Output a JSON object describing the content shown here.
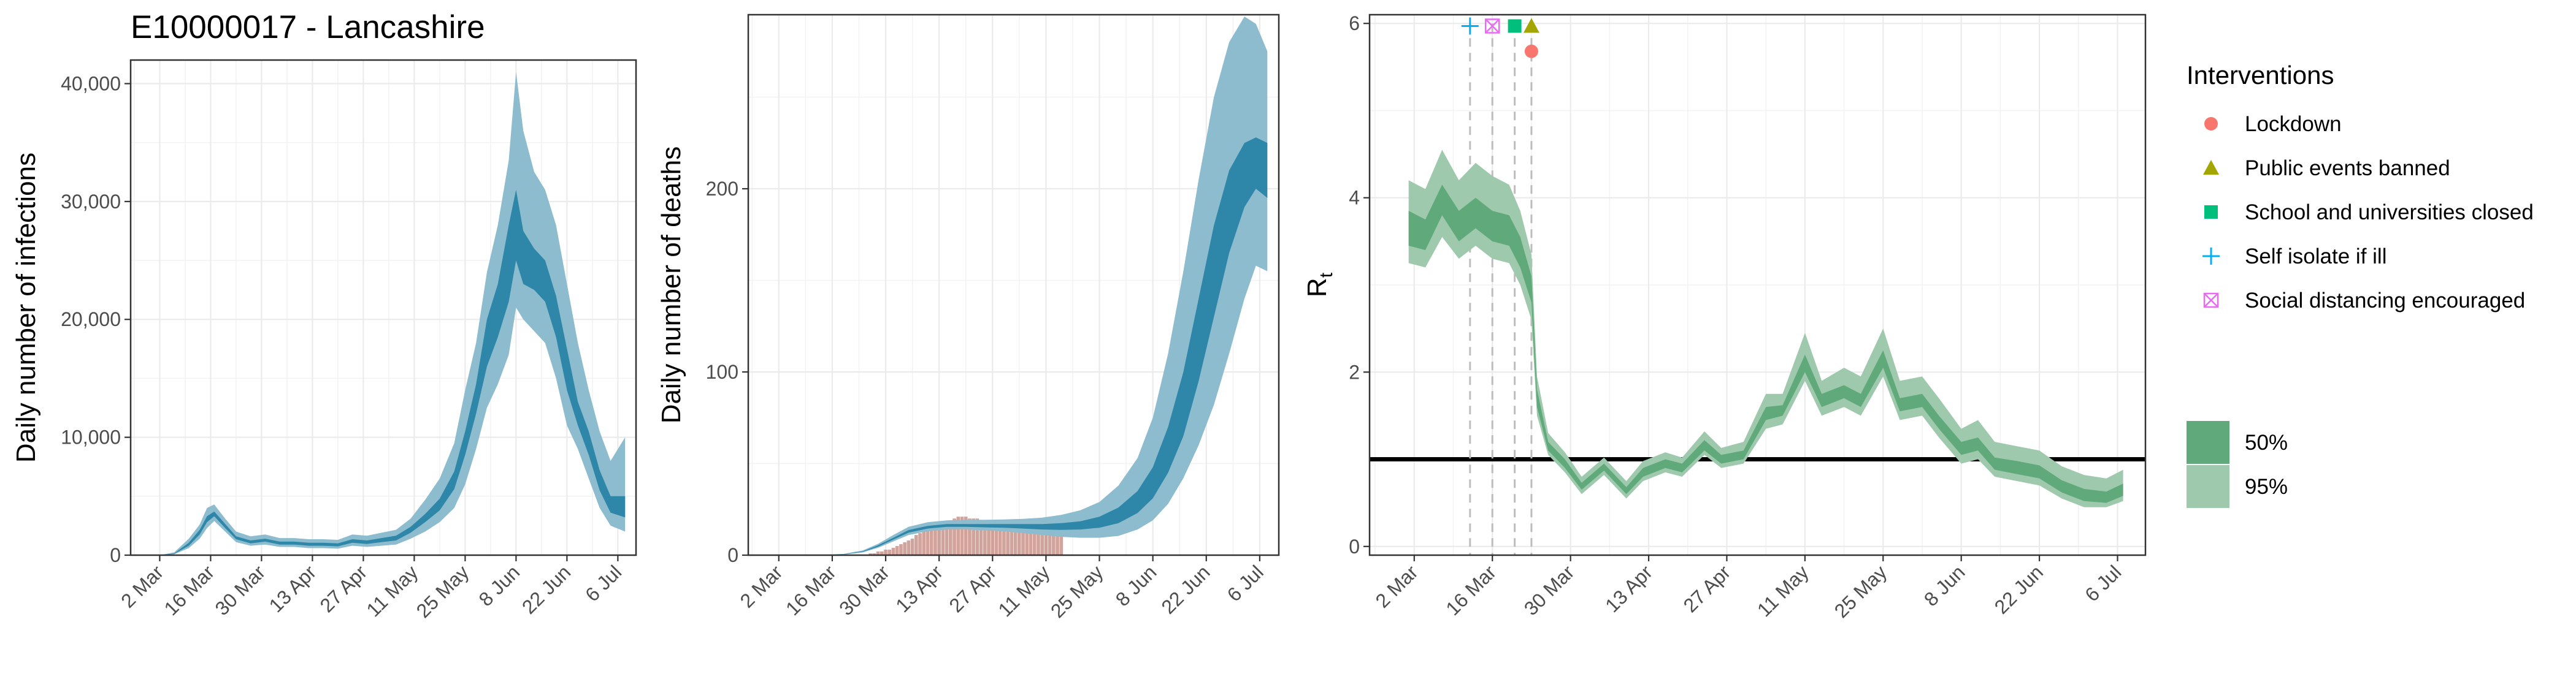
{
  "chart_data": [
    {
      "type": "area",
      "title": "E10000017 - Lancashire",
      "xlabel": "",
      "ylabel": "Daily number of infections",
      "x_tick_labels": [
        "2 Mar",
        "16 Mar",
        "30 Mar",
        "13 Apr",
        "27 Apr",
        "11 May",
        "25 May",
        "8 Jun",
        "22 Jun",
        "6 Jul"
      ],
      "y_tick_labels": [
        "0",
        "10,000",
        "20,000",
        "30,000",
        "40,000"
      ],
      "ylim": [
        0,
        42000
      ],
      "grid": true,
      "colors": {
        "band95": "#8dbccf",
        "band50": "#2e86a8"
      },
      "series": [
        {
          "x": [
            "2020-02-27",
            "2020-03-02",
            "2020-03-06",
            "2020-03-10",
            "2020-03-13",
            "2020-03-15",
            "2020-03-17",
            "2020-03-20",
            "2020-03-23",
            "2020-03-27",
            "2020-03-31",
            "2020-04-04",
            "2020-04-08",
            "2020-04-12",
            "2020-04-16",
            "2020-04-20",
            "2020-04-24",
            "2020-04-28",
            "2020-05-02",
            "2020-05-06",
            "2020-05-10",
            "2020-05-14",
            "2020-05-18",
            "2020-05-22",
            "2020-05-25",
            "2020-05-28",
            "2020-05-31",
            "2020-06-03",
            "2020-06-06",
            "2020-06-08",
            "2020-06-10",
            "2020-06-13",
            "2020-06-16",
            "2020-06-19",
            "2020-06-22",
            "2020-06-25",
            "2020-06-28",
            "2020-07-01",
            "2020-07-04",
            "2020-07-08"
          ],
          "lower95": [
            0,
            0,
            80,
            600,
            1400,
            2300,
            2900,
            2000,
            1100,
            800,
            900,
            700,
            700,
            600,
            600,
            550,
            800,
            700,
            800,
            900,
            1400,
            2000,
            2800,
            4000,
            6000,
            9000,
            12500,
            14500,
            17000,
            21000,
            20000,
            19000,
            18000,
            15000,
            11000,
            9000,
            6500,
            4000,
            2500,
            2000
          ],
          "lower50": [
            0,
            0,
            110,
            800,
            1750,
            2800,
            3300,
            2300,
            1350,
            1000,
            1150,
            900,
            900,
            800,
            800,
            750,
            1050,
            950,
            1100,
            1250,
            1900,
            2800,
            3800,
            5600,
            8500,
            12000,
            16000,
            18500,
            21500,
            25000,
            23000,
            22500,
            21500,
            18500,
            14000,
            11000,
            8500,
            5500,
            3600,
            3200
          ],
          "upper50": [
            0,
            0,
            150,
            1050,
            2150,
            3300,
            3700,
            2650,
            1600,
            1250,
            1400,
            1150,
            1150,
            1050,
            1050,
            1000,
            1350,
            1250,
            1450,
            1650,
            2400,
            3500,
            4800,
            7100,
            10500,
            14500,
            20000,
            23000,
            28000,
            31000,
            27500,
            26000,
            25000,
            22000,
            17500,
            13000,
            10500,
            7200,
            5000,
            5000
          ],
          "upper95": [
            0,
            0,
            240,
            1400,
            2600,
            4000,
            4300,
            3100,
            2000,
            1600,
            1750,
            1450,
            1450,
            1350,
            1350,
            1300,
            1750,
            1650,
            1900,
            2150,
            3100,
            4700,
            6500,
            9500,
            14000,
            18000,
            24000,
            28000,
            33500,
            41000,
            36000,
            32500,
            31000,
            28000,
            23000,
            18000,
            14000,
            10500,
            8000,
            10000
          ]
        }
      ]
    },
    {
      "type": "area",
      "title": "",
      "xlabel": "",
      "ylabel": "Daily number of deaths",
      "x_tick_labels": [
        "2 Mar",
        "16 Mar",
        "30 Mar",
        "13 Apr",
        "27 Apr",
        "11 May",
        "25 May",
        "8 Jun",
        "22 Jun",
        "6 Jul"
      ],
      "y_tick_labels": [
        "0",
        "100",
        "200"
      ],
      "ylim": [
        0,
        295
      ],
      "grid": true,
      "colors": {
        "band95": "#8dbccf",
        "band50": "#2e86a8",
        "observed_bars": "#c9938a",
        "bars_50": "#c9938a"
      },
      "observed_deaths": {
        "x": [
          "2020-03-26",
          "2020-03-27",
          "2020-03-28",
          "2020-03-29",
          "2020-03-30",
          "2020-03-31",
          "2020-04-01",
          "2020-04-02",
          "2020-04-03",
          "2020-04-04",
          "2020-04-05",
          "2020-04-06",
          "2020-04-07",
          "2020-04-08",
          "2020-04-09",
          "2020-04-10",
          "2020-04-11",
          "2020-04-12",
          "2020-04-13",
          "2020-04-14",
          "2020-04-15",
          "2020-04-16",
          "2020-04-17",
          "2020-04-18",
          "2020-04-19",
          "2020-04-20",
          "2020-04-21",
          "2020-04-22",
          "2020-04-23",
          "2020-04-24",
          "2020-04-25",
          "2020-04-26",
          "2020-04-27",
          "2020-04-28",
          "2020-04-29",
          "2020-04-30",
          "2020-05-01",
          "2020-05-02",
          "2020-05-03",
          "2020-05-04",
          "2020-05-05",
          "2020-05-06",
          "2020-05-07",
          "2020-05-08",
          "2020-05-09",
          "2020-05-10",
          "2020-05-11",
          "2020-05-12",
          "2020-05-13",
          "2020-05-14",
          "2020-05-15"
        ],
        "y": [
          1,
          1,
          2,
          2,
          3,
          3,
          4,
          5,
          6,
          7,
          8,
          9,
          11,
          12,
          13,
          14,
          15,
          16,
          17,
          18,
          18,
          19,
          20,
          21,
          21,
          21,
          20,
          20,
          20,
          19,
          19,
          18,
          18,
          17,
          17,
          16,
          16,
          15,
          15,
          15,
          14,
          14,
          14,
          14,
          14,
          14,
          14,
          14,
          14,
          14,
          14
        ]
      },
      "series": [
        {
          "x": [
            "2020-02-27",
            "2020-03-12",
            "2020-03-19",
            "2020-03-24",
            "2020-03-28",
            "2020-04-01",
            "2020-04-05",
            "2020-04-10",
            "2020-04-15",
            "2020-04-20",
            "2020-04-25",
            "2020-04-30",
            "2020-05-05",
            "2020-05-10",
            "2020-05-15",
            "2020-05-20",
            "2020-05-25",
            "2020-05-30",
            "2020-06-04",
            "2020-06-08",
            "2020-06-12",
            "2020-06-16",
            "2020-06-20",
            "2020-06-24",
            "2020-06-28",
            "2020-07-02",
            "2020-07-05",
            "2020-07-08"
          ],
          "lower95": [
            0,
            0,
            0.3,
            1.5,
            4,
            7.5,
            11,
            13,
            14,
            14,
            13.5,
            13,
            12,
            11,
            10,
            9.5,
            9.5,
            10.5,
            14,
            19,
            28,
            42,
            60,
            82,
            110,
            140,
            158,
            155
          ],
          "lower50": [
            0,
            0,
            0.4,
            1.8,
            4.6,
            8.5,
            12.3,
            14.5,
            15.5,
            15.5,
            15.2,
            15,
            14.5,
            14,
            13.8,
            14,
            15,
            17.5,
            23,
            31,
            45,
            65,
            95,
            130,
            165,
            190,
            200,
            195
          ],
          "upper50": [
            0,
            0,
            0.5,
            2.1,
            5.4,
            9.5,
            13.7,
            16,
            17,
            17,
            17,
            17,
            17,
            17,
            17.5,
            18.5,
            21,
            26,
            35,
            48,
            70,
            100,
            140,
            180,
            210,
            225,
            228,
            225
          ],
          "upper95": [
            0,
            0,
            0.7,
            2.6,
            6.2,
            11,
            15.5,
            18,
            19,
            19.3,
            19.3,
            19.5,
            19.8,
            20.5,
            22,
            24.5,
            29,
            38,
            53,
            75,
            110,
            155,
            205,
            250,
            280,
            294,
            290,
            275
          ]
        }
      ]
    },
    {
      "type": "area",
      "title": "",
      "xlabel": "",
      "ylabel": "R",
      "ylabel_subscript": "t",
      "x_tick_labels": [
        "2 Mar",
        "16 Mar",
        "30 Mar",
        "13 Apr",
        "27 Apr",
        "11 May",
        "25 May",
        "8 Jun",
        "22 Jun",
        "6 Jul"
      ],
      "y_tick_labels": [
        "0",
        "2",
        "4",
        "6"
      ],
      "ylim": [
        -0.1,
        6.1
      ],
      "grid": true,
      "reference_line": {
        "y": 1,
        "color": "#000000"
      },
      "colors": {
        "band95": "#9ec9ad",
        "band50": "#5fa97a"
      },
      "series": [
        {
          "x": [
            "2020-03-01",
            "2020-03-04",
            "2020-03-07",
            "2020-03-10",
            "2020-03-13",
            "2020-03-16",
            "2020-03-19",
            "2020-03-21",
            "2020-03-23",
            "2020-03-24",
            "2020-03-26",
            "2020-03-29",
            "2020-04-01",
            "2020-04-05",
            "2020-04-09",
            "2020-04-12",
            "2020-04-16",
            "2020-04-19",
            "2020-04-23",
            "2020-04-26",
            "2020-04-30",
            "2020-05-04",
            "2020-05-07",
            "2020-05-11",
            "2020-05-14",
            "2020-05-18",
            "2020-05-21",
            "2020-05-25",
            "2020-05-28",
            "2020-06-01",
            "2020-06-04",
            "2020-06-08",
            "2020-06-11",
            "2020-06-14",
            "2020-06-18",
            "2020-06-22",
            "2020-06-26",
            "2020-06-30",
            "2020-07-04",
            "2020-07-07"
          ],
          "lower95": [
            3.25,
            3.2,
            3.55,
            3.3,
            3.45,
            3.3,
            3.25,
            3.0,
            2.6,
            1.5,
            1.05,
            0.85,
            0.6,
            0.82,
            0.55,
            0.75,
            0.85,
            0.8,
            1.05,
            0.9,
            0.95,
            1.35,
            1.4,
            1.9,
            1.5,
            1.6,
            1.5,
            1.95,
            1.45,
            1.5,
            1.25,
            0.95,
            1.0,
            0.8,
            0.75,
            0.7,
            0.55,
            0.45,
            0.45,
            0.52
          ],
          "lower50": [
            3.45,
            3.4,
            3.8,
            3.5,
            3.65,
            3.5,
            3.45,
            3.2,
            2.8,
            1.6,
            1.1,
            0.9,
            0.65,
            0.87,
            0.6,
            0.8,
            0.9,
            0.85,
            1.1,
            0.95,
            1.0,
            1.45,
            1.5,
            2.0,
            1.6,
            1.7,
            1.6,
            2.05,
            1.55,
            1.6,
            1.35,
            1.05,
            1.1,
            0.88,
            0.83,
            0.78,
            0.62,
            0.52,
            0.5,
            0.58
          ],
          "upper50": [
            3.85,
            3.75,
            4.15,
            3.85,
            4.0,
            3.85,
            3.8,
            3.55,
            3.1,
            1.8,
            1.2,
            1.0,
            0.73,
            0.95,
            0.68,
            0.9,
            1.0,
            0.95,
            1.22,
            1.05,
            1.1,
            1.6,
            1.62,
            2.2,
            1.75,
            1.85,
            1.75,
            2.25,
            1.7,
            1.75,
            1.5,
            1.2,
            1.25,
            1.02,
            0.98,
            0.93,
            0.76,
            0.66,
            0.63,
            0.72
          ],
          "upper95": [
            4.2,
            4.1,
            4.55,
            4.2,
            4.4,
            4.25,
            4.15,
            3.85,
            3.35,
            1.95,
            1.3,
            1.08,
            0.8,
            1.02,
            0.75,
            0.98,
            1.08,
            1.02,
            1.32,
            1.13,
            1.2,
            1.75,
            1.75,
            2.45,
            1.9,
            2.05,
            1.95,
            2.5,
            1.9,
            1.95,
            1.7,
            1.35,
            1.45,
            1.2,
            1.15,
            1.1,
            0.92,
            0.82,
            0.78,
            0.88
          ]
        }
      ],
      "interventions": [
        {
          "date": "2020-03-23",
          "label": "Lockdown",
          "color": "#f8766d",
          "shape": "circle"
        },
        {
          "date": "2020-03-23",
          "label": "Public events banned",
          "color": "#a3a500",
          "shape": "triangle"
        },
        {
          "date": "2020-03-20",
          "label": "School and universities closed",
          "color": "#00bf7d",
          "shape": "square"
        },
        {
          "date": "2020-03-12",
          "label": "Self isolate if ill",
          "color": "#00b0f6",
          "shape": "plus"
        },
        {
          "date": "2020-03-16",
          "label": "Social distancing encouraged",
          "color": "#e76bf3",
          "shape": "boxed-x"
        }
      ],
      "legend": {
        "title": "Interventions",
        "placement": "right",
        "band_labels": [
          "50%",
          "95%"
        ]
      }
    }
  ]
}
